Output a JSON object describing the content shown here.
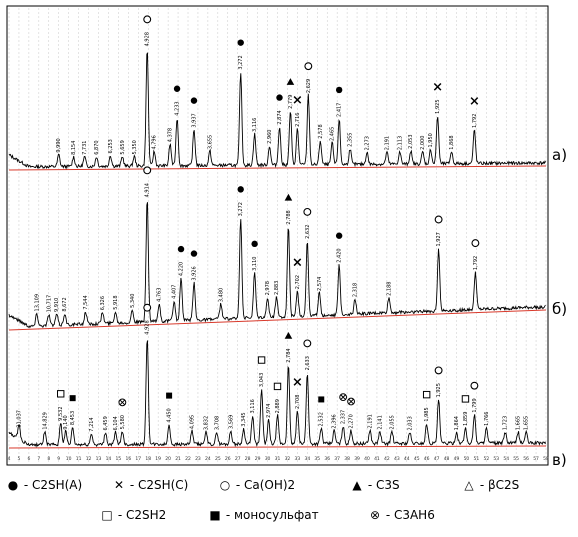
{
  "chart_data": {
    "type": "line",
    "xlim": [
      4,
      58
    ],
    "x_ticks": [
      4,
      5,
      6,
      7,
      8,
      9,
      10,
      11,
      12,
      13,
      14,
      15,
      16,
      17,
      18,
      19,
      20,
      21,
      22,
      23,
      24,
      25,
      26,
      27,
      28,
      29,
      30,
      31,
      32,
      33,
      34,
      35,
      36,
      37,
      38,
      39,
      40,
      41,
      42,
      43,
      44,
      45,
      46,
      47,
      48,
      49,
      50,
      51,
      52,
      53,
      54,
      55,
      56,
      57,
      58
    ],
    "grid": true,
    "series": [
      {
        "label": "а)",
        "peaks": [
          {
            "x": 9.0,
            "h": 0.1,
            "d": "9,990"
          },
          {
            "x": 10.5,
            "h": 0.08,
            "d": "8,154"
          },
          {
            "x": 11.6,
            "h": 0.08,
            "d": "7,731"
          },
          {
            "x": 12.8,
            "h": 0.08,
            "d": "6,870"
          },
          {
            "x": 14.2,
            "h": 0.09,
            "d": "6,253"
          },
          {
            "x": 15.4,
            "h": 0.08,
            "d": "5,659"
          },
          {
            "x": 16.6,
            "h": 0.08,
            "d": "5,350"
          },
          {
            "x": 17.9,
            "h": 0.98,
            "d": "4,928",
            "mark": "ch"
          },
          {
            "x": 18.6,
            "h": 0.12,
            "d": "4,796"
          },
          {
            "x": 20.2,
            "h": 0.18,
            "d": "4,378"
          },
          {
            "x": 20.9,
            "h": 0.4,
            "d": "4,233",
            "mark": "c2sha"
          },
          {
            "x": 22.6,
            "h": 0.3,
            "d": "3,937",
            "mark": "c2sha"
          },
          {
            "x": 24.2,
            "h": 0.12,
            "d": "3,655"
          },
          {
            "x": 27.3,
            "h": 0.78,
            "d": "3,272",
            "mark": "c2sha"
          },
          {
            "x": 28.7,
            "h": 0.26,
            "d": "3,116"
          },
          {
            "x": 30.2,
            "h": 0.16,
            "d": "2,960"
          },
          {
            "x": 31.2,
            "h": 0.32,
            "d": "2,874",
            "mark": "c2sha"
          },
          {
            "x": 32.3,
            "h": 0.45,
            "d": "2,779",
            "mark": "c2s"
          },
          {
            "x": 33.0,
            "h": 0.3,
            "d": "2,716",
            "mark": "c2shc"
          },
          {
            "x": 34.1,
            "h": 0.58,
            "d": "2,629",
            "mark": "ch"
          },
          {
            "x": 35.3,
            "h": 0.2,
            "d": "2,578"
          },
          {
            "x": 36.5,
            "h": 0.18,
            "d": "2,465"
          },
          {
            "x": 37.2,
            "h": 0.38,
            "d": "2,417",
            "mark": "c2sha"
          },
          {
            "x": 38.3,
            "h": 0.13,
            "d": "2,355"
          },
          {
            "x": 40.0,
            "h": 0.1,
            "d": "2,273"
          },
          {
            "x": 42.0,
            "h": 0.1,
            "d": "2,191"
          },
          {
            "x": 43.3,
            "h": 0.1,
            "d": "2,113"
          },
          {
            "x": 44.4,
            "h": 0.11,
            "d": "2,053"
          },
          {
            "x": 45.6,
            "h": 0.1,
            "d": "2,000"
          },
          {
            "x": 46.4,
            "h": 0.12,
            "d": "1,950"
          },
          {
            "x": 47.1,
            "h": 0.4,
            "d": "1,925",
            "mark": "c2shc"
          },
          {
            "x": 48.5,
            "h": 0.1,
            "d": "1,868"
          },
          {
            "x": 50.8,
            "h": 0.28,
            "d": "1,792",
            "mark": "c2shc"
          }
        ]
      },
      {
        "label": "б)",
        "peaks": [
          {
            "x": 6.8,
            "h": 0.1,
            "d": "13,109"
          },
          {
            "x": 8.0,
            "h": 0.09,
            "d": "10,717"
          },
          {
            "x": 8.8,
            "h": 0.09,
            "d": "9,910"
          },
          {
            "x": 9.6,
            "h": 0.09,
            "d": "8,672"
          },
          {
            "x": 11.7,
            "h": 0.1,
            "d": "7,544"
          },
          {
            "x": 13.4,
            "h": 0.09,
            "d": "6,326"
          },
          {
            "x": 14.7,
            "h": 0.09,
            "d": "5,918"
          },
          {
            "x": 16.4,
            "h": 0.1,
            "d": "5,340"
          },
          {
            "x": 17.9,
            "h": 0.98,
            "d": "4,914",
            "mark": "ch"
          },
          {
            "x": 19.1,
            "h": 0.14,
            "d": "4,763"
          },
          {
            "x": 20.6,
            "h": 0.16,
            "d": "4,407"
          },
          {
            "x": 21.3,
            "h": 0.34,
            "d": "4,220",
            "mark": "c2sha"
          },
          {
            "x": 22.6,
            "h": 0.3,
            "d": "3,926",
            "mark": "c2sha"
          },
          {
            "x": 25.3,
            "h": 0.12,
            "d": "3,480"
          },
          {
            "x": 27.3,
            "h": 0.8,
            "d": "3,272",
            "mark": "c2sha"
          },
          {
            "x": 28.7,
            "h": 0.36,
            "d": "3,110",
            "mark": "c2sha"
          },
          {
            "x": 30.0,
            "h": 0.16,
            "d": "2,978"
          },
          {
            "x": 30.9,
            "h": 0.16,
            "d": "2,883"
          },
          {
            "x": 32.1,
            "h": 0.72,
            "d": "2,788",
            "mark": "c2s"
          },
          {
            "x": 33.0,
            "h": 0.2,
            "d": "2,702",
            "mark": "c2shc"
          },
          {
            "x": 34.0,
            "h": 0.6,
            "d": "2,632",
            "mark": "ch"
          },
          {
            "x": 35.2,
            "h": 0.18,
            "d": "2,574"
          },
          {
            "x": 37.2,
            "h": 0.4,
            "d": "2,420",
            "mark": "c2sha"
          },
          {
            "x": 38.8,
            "h": 0.12,
            "d": "2,318"
          },
          {
            "x": 42.2,
            "h": 0.12,
            "d": "2,188"
          },
          {
            "x": 47.2,
            "h": 0.5,
            "d": "1,927",
            "mark": "ch"
          },
          {
            "x": 50.9,
            "h": 0.3,
            "d": "1,792",
            "mark": "ch"
          }
        ]
      },
      {
        "label": "в)",
        "peaks": [
          {
            "x": 5.0,
            "h": 0.14,
            "d": "21,037"
          },
          {
            "x": 7.6,
            "h": 0.12,
            "d": "14,829"
          },
          {
            "x": 9.2,
            "h": 0.2,
            "d": "9,532",
            "mark": "c2sh2"
          },
          {
            "x": 9.7,
            "h": 0.12,
            "d": "9,140"
          },
          {
            "x": 10.4,
            "h": 0.16,
            "d": "8,453",
            "mark": "mono"
          },
          {
            "x": 12.3,
            "h": 0.1,
            "d": "7,214"
          },
          {
            "x": 13.7,
            "h": 0.11,
            "d": "6,459"
          },
          {
            "x": 14.7,
            "h": 0.11,
            "d": "6,104"
          },
          {
            "x": 15.4,
            "h": 0.12,
            "d": "5,580",
            "mark": "c3ah6"
          },
          {
            "x": 17.9,
            "h": 0.98,
            "d": "4,928",
            "mark": "ch"
          },
          {
            "x": 20.1,
            "h": 0.18,
            "d": "4,450",
            "mark": "mono"
          },
          {
            "x": 22.4,
            "h": 0.12,
            "d": "4,095"
          },
          {
            "x": 23.8,
            "h": 0.11,
            "d": "3,832"
          },
          {
            "x": 24.9,
            "h": 0.11,
            "d": "3,708"
          },
          {
            "x": 26.3,
            "h": 0.12,
            "d": "3,569"
          },
          {
            "x": 27.6,
            "h": 0.14,
            "d": "3,345"
          },
          {
            "x": 28.5,
            "h": 0.26,
            "d": "3,116"
          },
          {
            "x": 29.4,
            "h": 0.5,
            "d": "3,043",
            "mark": "c2sh2"
          },
          {
            "x": 30.1,
            "h": 0.22,
            "d": "2,974"
          },
          {
            "x": 31.0,
            "h": 0.26,
            "d": "2,889",
            "mark": "c2sh2"
          },
          {
            "x": 32.1,
            "h": 0.72,
            "d": "2,784",
            "mark": "c2s"
          },
          {
            "x": 33.0,
            "h": 0.3,
            "d": "2,708",
            "mark": "c2shc"
          },
          {
            "x": 34.0,
            "h": 0.65,
            "d": "2,633",
            "mark": "ch"
          },
          {
            "x": 35.4,
            "h": 0.14,
            "d": "2,532",
            "mark": "mono"
          },
          {
            "x": 36.7,
            "h": 0.12,
            "d": "2,396"
          },
          {
            "x": 37.6,
            "h": 0.16,
            "d": "2,337",
            "mark": "c3ah6"
          },
          {
            "x": 38.4,
            "h": 0.12,
            "d": "2,270",
            "mark": "c3ah6"
          },
          {
            "x": 40.3,
            "h": 0.12,
            "d": "2,191"
          },
          {
            "x": 41.3,
            "h": 0.11,
            "d": "2,141"
          },
          {
            "x": 42.5,
            "h": 0.11,
            "d": "2,055"
          },
          {
            "x": 44.3,
            "h": 0.1,
            "d": "2,033"
          },
          {
            "x": 46.0,
            "h": 0.18,
            "d": "1,985",
            "mark": "c2sh2"
          },
          {
            "x": 47.2,
            "h": 0.4,
            "d": "1,925",
            "mark": "ch"
          },
          {
            "x": 49.0,
            "h": 0.1,
            "d": "1,864"
          },
          {
            "x": 49.9,
            "h": 0.14,
            "d": "1,859",
            "mark": "c2sh2"
          },
          {
            "x": 50.8,
            "h": 0.26,
            "d": "1,799",
            "mark": "ch"
          },
          {
            "x": 52.0,
            "h": 0.14,
            "d": "1,766"
          },
          {
            "x": 53.9,
            "h": 0.1,
            "d": "1,723"
          },
          {
            "x": 55.2,
            "h": 0.1,
            "d": "1,665"
          },
          {
            "x": 56.0,
            "h": 0.1,
            "d": "1,655"
          }
        ]
      }
    ]
  },
  "legend": {
    "row1": [
      {
        "symbol": "●",
        "mark": "c2sha",
        "text": "- C2SH(A)"
      },
      {
        "symbol": "✕",
        "mark": "c2shc",
        "text": "- C2SH(C)"
      },
      {
        "symbol": "○",
        "mark": "ch",
        "text": "- Ca(OH)2"
      },
      {
        "symbol": "▲",
        "mark": "c2s",
        "text": "- C3S"
      },
      {
        "symbol": "△",
        "mark": "bc2s",
        "text": "- βC2S"
      }
    ],
    "row2": [
      {
        "symbol": "□",
        "mark": "c2sh2",
        "text": "- C2SH2"
      },
      {
        "symbol": "■",
        "mark": "mono",
        "text": "- моносульфат"
      },
      {
        "symbol": "⊗",
        "mark": "c3ah6",
        "text": "- C3AH6"
      }
    ]
  },
  "colors": {
    "trace": "#000000",
    "baseline": "#d8392b",
    "grid": "#c8c8c8"
  }
}
